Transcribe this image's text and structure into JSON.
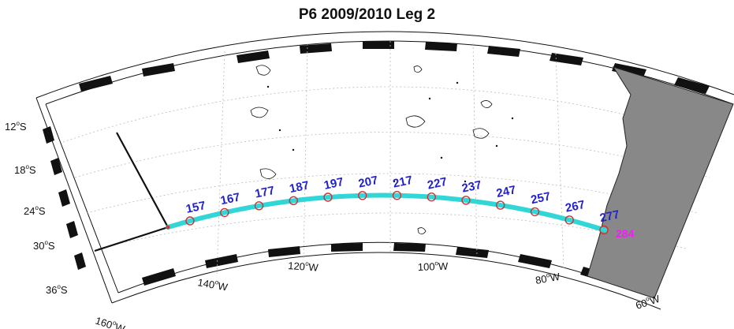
{
  "title": "P6 2009/2010 Leg 2",
  "latitude_labels": [
    {
      "deg": "12",
      "hemi": "S"
    },
    {
      "deg": "18",
      "hemi": "S"
    },
    {
      "deg": "24",
      "hemi": "S"
    },
    {
      "deg": "30",
      "hemi": "S"
    },
    {
      "deg": "36",
      "hemi": "S"
    }
  ],
  "longitude_labels": [
    {
      "deg": "160",
      "hemi": "W"
    },
    {
      "deg": "140",
      "hemi": "W"
    },
    {
      "deg": "120",
      "hemi": "W"
    },
    {
      "deg": "100",
      "hemi": "W"
    },
    {
      "deg": "80",
      "hemi": "W"
    },
    {
      "deg": "60",
      "hemi": "W"
    }
  ],
  "station_labels": [
    "157",
    "167",
    "177",
    "187",
    "197",
    "207",
    "217",
    "227",
    "237",
    "247",
    "257",
    "267",
    "277"
  ],
  "final_station_label": "284",
  "colors": {
    "track": "#33d6d6",
    "station_marker": "#cc3333",
    "station_label": "#2222cc",
    "final_station_label": "#ee22ee",
    "land": "#888888",
    "previous_leg_track": "#111111"
  }
}
